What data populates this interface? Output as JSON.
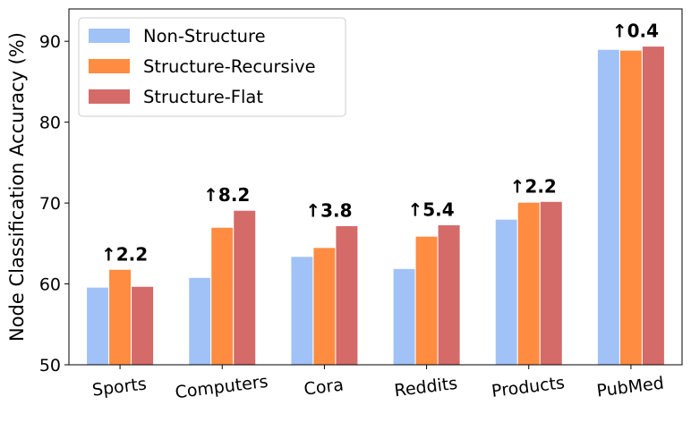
{
  "chart_data": {
    "type": "bar",
    "title": "",
    "xlabel": "",
    "ylabel": "Node Classification Accuracy (%)",
    "ylim": [
      50,
      94
    ],
    "yticks": [
      50,
      60,
      70,
      80,
      90
    ],
    "categories": [
      "Sports",
      "Computers",
      "Cora",
      "Reddits",
      "Products",
      "PubMed"
    ],
    "series": [
      {
        "name": "Non-Structure",
        "color": "#a1c2f7",
        "values": [
          59.6,
          60.8,
          63.4,
          61.9,
          68.0,
          89.0
        ]
      },
      {
        "name": "Structure-Recursive",
        "color": "#ff8c40",
        "values": [
          61.8,
          67.0,
          64.5,
          65.9,
          70.1,
          88.9
        ]
      },
      {
        "name": "Structure-Flat",
        "color": "#d46b69",
        "values": [
          59.7,
          69.1,
          67.2,
          67.3,
          70.2,
          89.4
        ]
      }
    ],
    "annotations": [
      "↑2.2",
      "↑8.2",
      "↑3.8",
      "↑5.4",
      "↑2.2",
      "↑0.4"
    ],
    "legend_position": "top-left",
    "grid": false
  }
}
